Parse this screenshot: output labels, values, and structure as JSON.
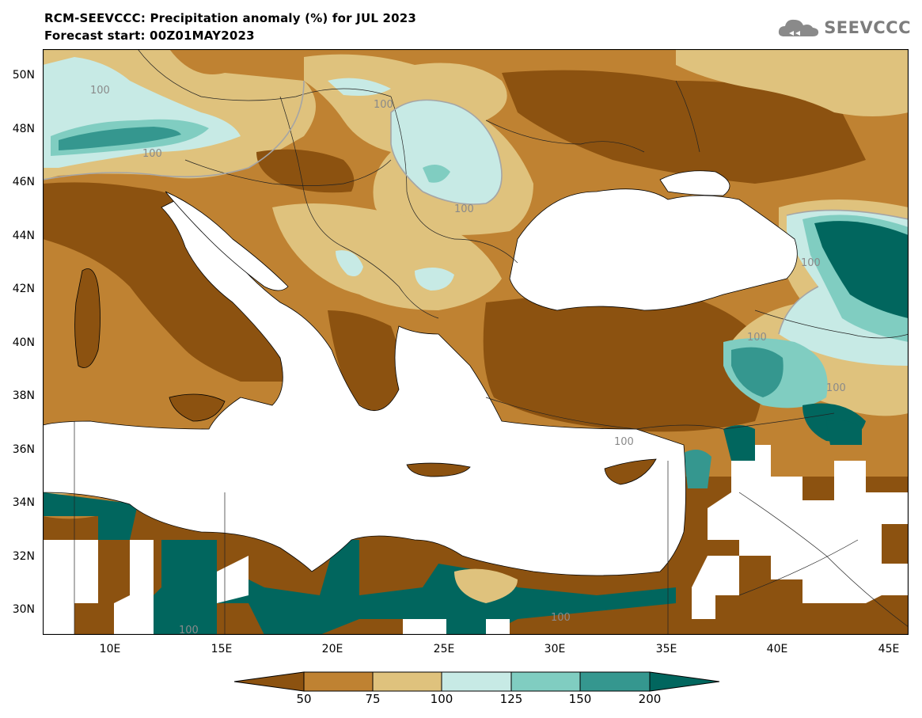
{
  "title_line1": "RCM-SEEVCCC: Precipitation anomaly (%) for JUL 2023",
  "title_line2": "Forecast start: 00Z01MAY2023",
  "logo_text": "SEEVCCC",
  "lat_labels": [
    "50N",
    "48N",
    "46N",
    "44N",
    "42N",
    "40N",
    "38N",
    "36N",
    "34N",
    "32N",
    "30N"
  ],
  "lon_labels": [
    "10E",
    "15E",
    "20E",
    "25E",
    "30E",
    "35E",
    "40E",
    "45E"
  ],
  "contour_labels": [
    "100",
    "100",
    "100",
    "100",
    "100",
    "100",
    "100",
    "100",
    "100",
    "100"
  ],
  "colorbar": {
    "levels": [
      "50",
      "75",
      "100",
      "125",
      "150",
      "200"
    ],
    "colors": [
      "#8c5210",
      "#bf8232",
      "#dfc27d",
      "#c7eae5",
      "#80cdc1",
      "#35978f",
      "#01665e"
    ]
  },
  "legend": {
    "below_50": "#8c5210",
    "50_75": "#bf8232",
    "75_100": "#dfc27d",
    "100_125": "#c7eae5",
    "125_150": "#80cdc1",
    "150_200": "#35978f",
    "above_200": "#01665e"
  }
}
